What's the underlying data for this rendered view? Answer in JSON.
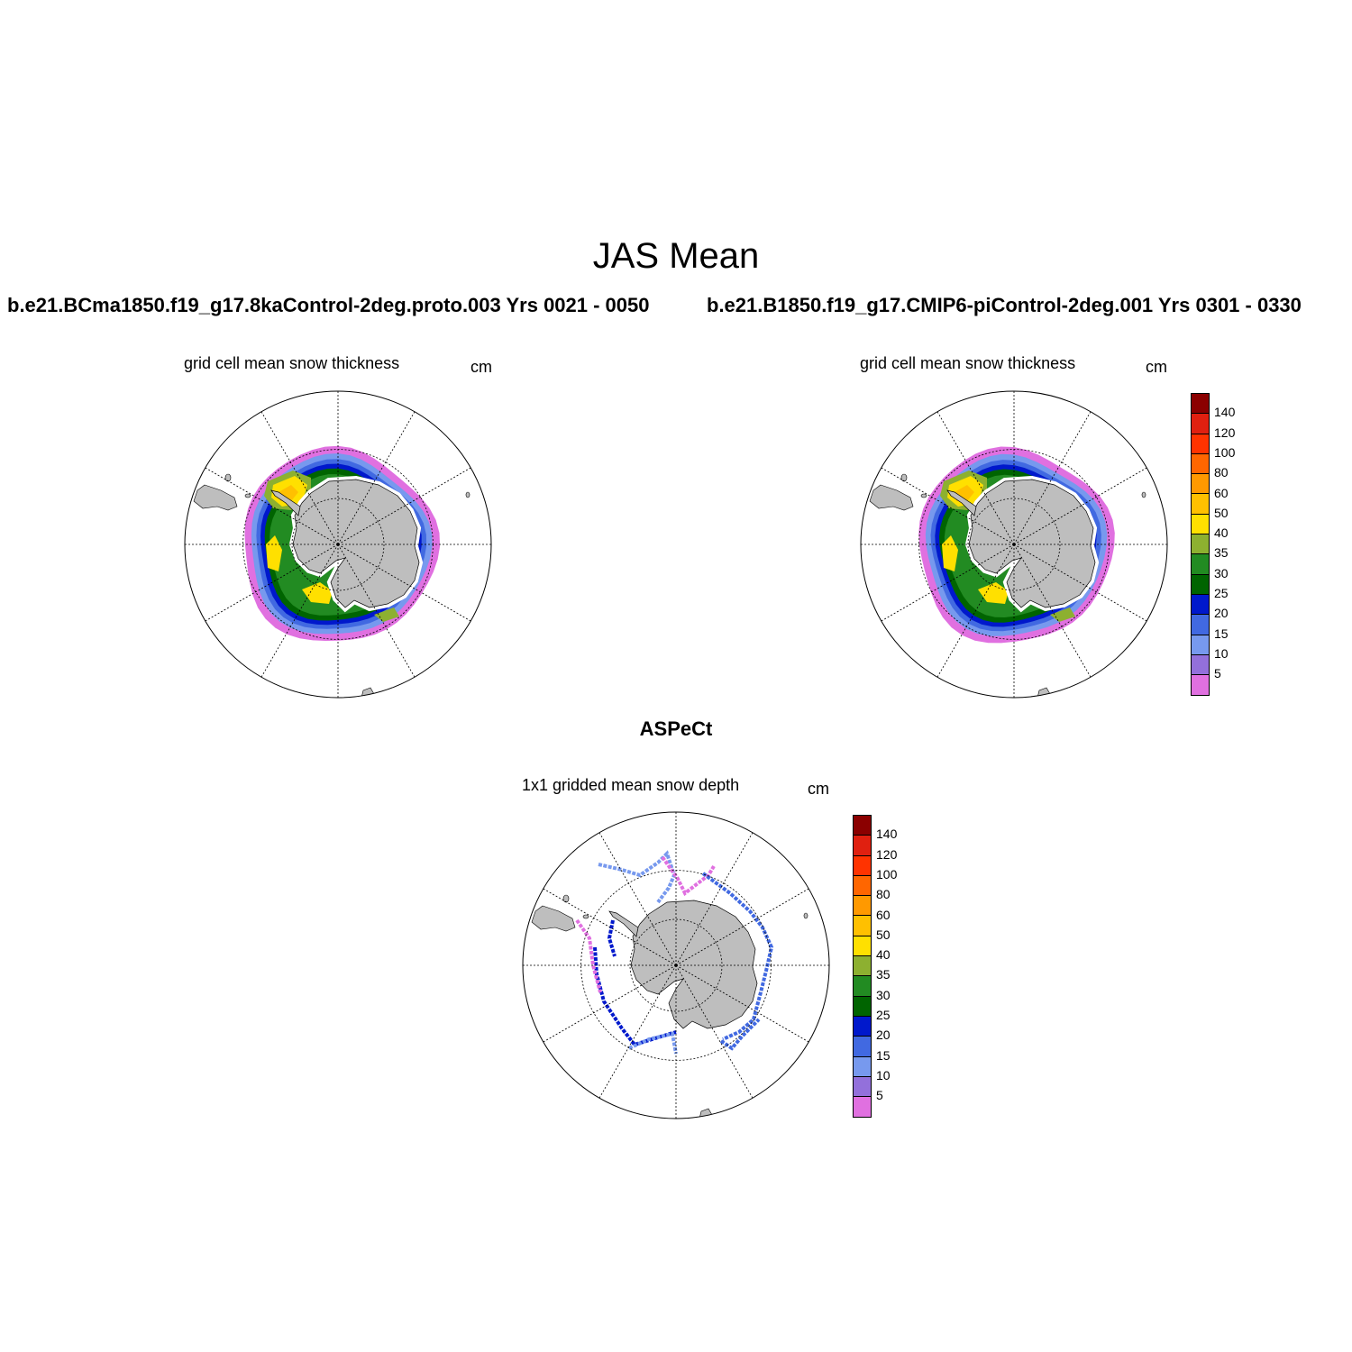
{
  "title": "JAS Mean",
  "panels": [
    {
      "case_label": "b.e21.BCma1850.f19_g17.8kaControl-2deg.proto.003  Yrs 0021 - 0050",
      "variable_label": "grid cell mean snow thickness",
      "units_label": "cm"
    },
    {
      "case_label": "b.e21.B1850.f19_g17.CMIP6-piControl-2deg.001  Yrs 0301 - 0330",
      "variable_label": "grid cell mean snow thickness",
      "units_label": "cm"
    },
    {
      "case_label": "ASPeCt",
      "variable_label": "1x1 gridded mean snow depth",
      "units_label": "cm"
    }
  ],
  "colorbar": {
    "levels": [
      "5",
      "10",
      "15",
      "20",
      "25",
      "30",
      "35",
      "40",
      "50",
      "60",
      "80",
      "100",
      "120",
      "140"
    ],
    "colors": [
      "#e070e0",
      "#9370db",
      "#7799ee",
      "#4169e1",
      "#0018cc",
      "#006400",
      "#228b22",
      "#8db030",
      "#ffe000",
      "#ffc000",
      "#ff9900",
      "#ff6600",
      "#ff3300",
      "#e02010",
      "#8b0000"
    ]
  },
  "map_style": {
    "land_color": "#bebebe",
    "projection": "south-polar-stereographic"
  }
}
